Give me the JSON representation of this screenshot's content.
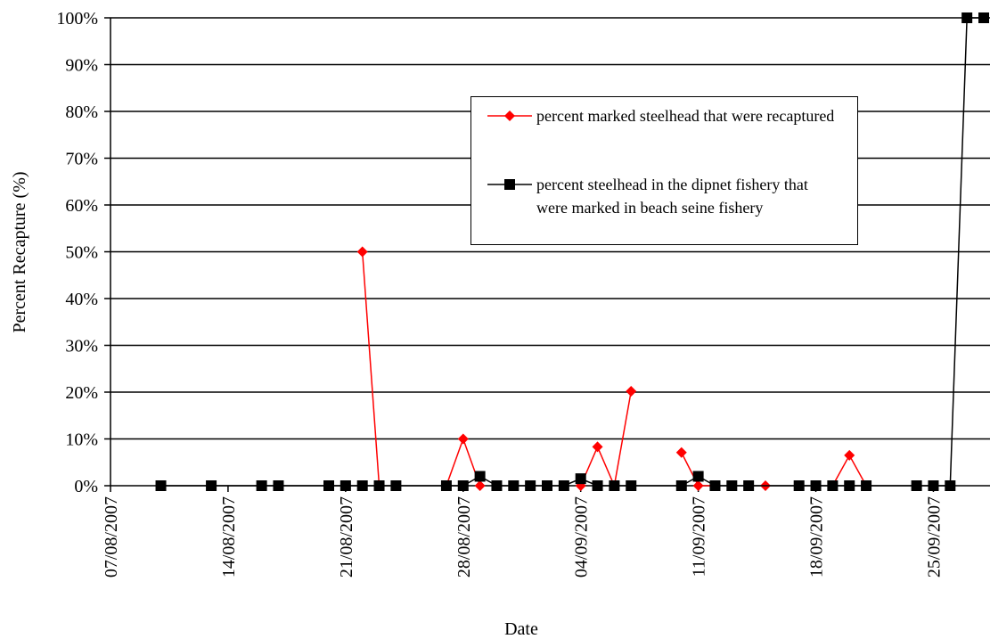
{
  "chart_data": {
    "type": "line",
    "x_label": "Date",
    "y_label": "Percent Recapture (%)",
    "xlim": [
      "2007-08-07",
      "2007-09-28"
    ],
    "xticks": [
      {
        "value": "2007-08-07",
        "label": "07/08/2007"
      },
      {
        "value": "2007-08-14",
        "label": "14/08/2007"
      },
      {
        "value": "2007-08-21",
        "label": "21/08/2007"
      },
      {
        "value": "2007-08-28",
        "label": "28/08/2007"
      },
      {
        "value": "2007-09-04",
        "label": "04/09/2007"
      },
      {
        "value": "2007-09-11",
        "label": "11/09/2007"
      },
      {
        "value": "2007-09-18",
        "label": "18/09/2007"
      },
      {
        "value": "2007-09-25",
        "label": "25/09/2007"
      }
    ],
    "ylim": [
      0,
      100
    ],
    "yticks": [
      {
        "value": 0,
        "label": "0%"
      },
      {
        "value": 10,
        "label": "10%"
      },
      {
        "value": 20,
        "label": "20%"
      },
      {
        "value": 30,
        "label": "30%"
      },
      {
        "value": 40,
        "label": "40%"
      },
      {
        "value": 50,
        "label": "50%"
      },
      {
        "value": 60,
        "label": "60%"
      },
      {
        "value": 70,
        "label": "70%"
      },
      {
        "value": 80,
        "label": "80%"
      },
      {
        "value": 90,
        "label": "90%"
      },
      {
        "value": 100,
        "label": "100%"
      }
    ],
    "grid": true,
    "series": [
      {
        "name": "percent marked steelhead that were recaptured",
        "color": "#ff0000",
        "marker": "diamond",
        "x": [
          "2007-08-22",
          "2007-08-23",
          "2007-08-24",
          "2007-08-27",
          "2007-08-28",
          "2007-08-29",
          "2007-08-30",
          "2007-09-04",
          "2007-09-05",
          "2007-09-06",
          "2007-09-07",
          "2007-09-08",
          "2007-09-10",
          "2007-09-11",
          "2007-09-12",
          "2007-09-13",
          "2007-09-15",
          "2007-09-16",
          "2007-09-19",
          "2007-09-20",
          "2007-09-21"
        ],
        "values": [
          50,
          0,
          null,
          0,
          10,
          0,
          null,
          0,
          8.3,
          0,
          20.2,
          null,
          7.1,
          0,
          0,
          null,
          0,
          null,
          0,
          6.5,
          0
        ]
      },
      {
        "name": "percent steelhead in the dipnet fishery that were marked in beach seine fishery",
        "color": "#000000",
        "marker": "square",
        "x": [
          "2007-08-10",
          "2007-08-13",
          "2007-08-16",
          "2007-08-17",
          "2007-08-20",
          "2007-08-21",
          "2007-08-22",
          "2007-08-23",
          "2007-08-24",
          "2007-08-27",
          "2007-08-28",
          "2007-08-29",
          "2007-08-30",
          "2007-08-31",
          "2007-09-01",
          "2007-09-02",
          "2007-09-03",
          "2007-09-04",
          "2007-09-05",
          "2007-09-06",
          "2007-09-07",
          "2007-09-10",
          "2007-09-11",
          "2007-09-12",
          "2007-09-13",
          "2007-09-14",
          "2007-09-17",
          "2007-09-18",
          "2007-09-19",
          "2007-09-20",
          "2007-09-21",
          "2007-09-24",
          "2007-09-25",
          "2007-09-26",
          "2007-09-27",
          "2007-09-28"
        ],
        "values": [
          0,
          0,
          0,
          0,
          0,
          0,
          0,
          0,
          0,
          0,
          0,
          2,
          0,
          0,
          0,
          0,
          0,
          1.5,
          0,
          0,
          0,
          0,
          2,
          0,
          0,
          0,
          0,
          0,
          0,
          0,
          0,
          0,
          0,
          0,
          100,
          100
        ]
      }
    ]
  }
}
